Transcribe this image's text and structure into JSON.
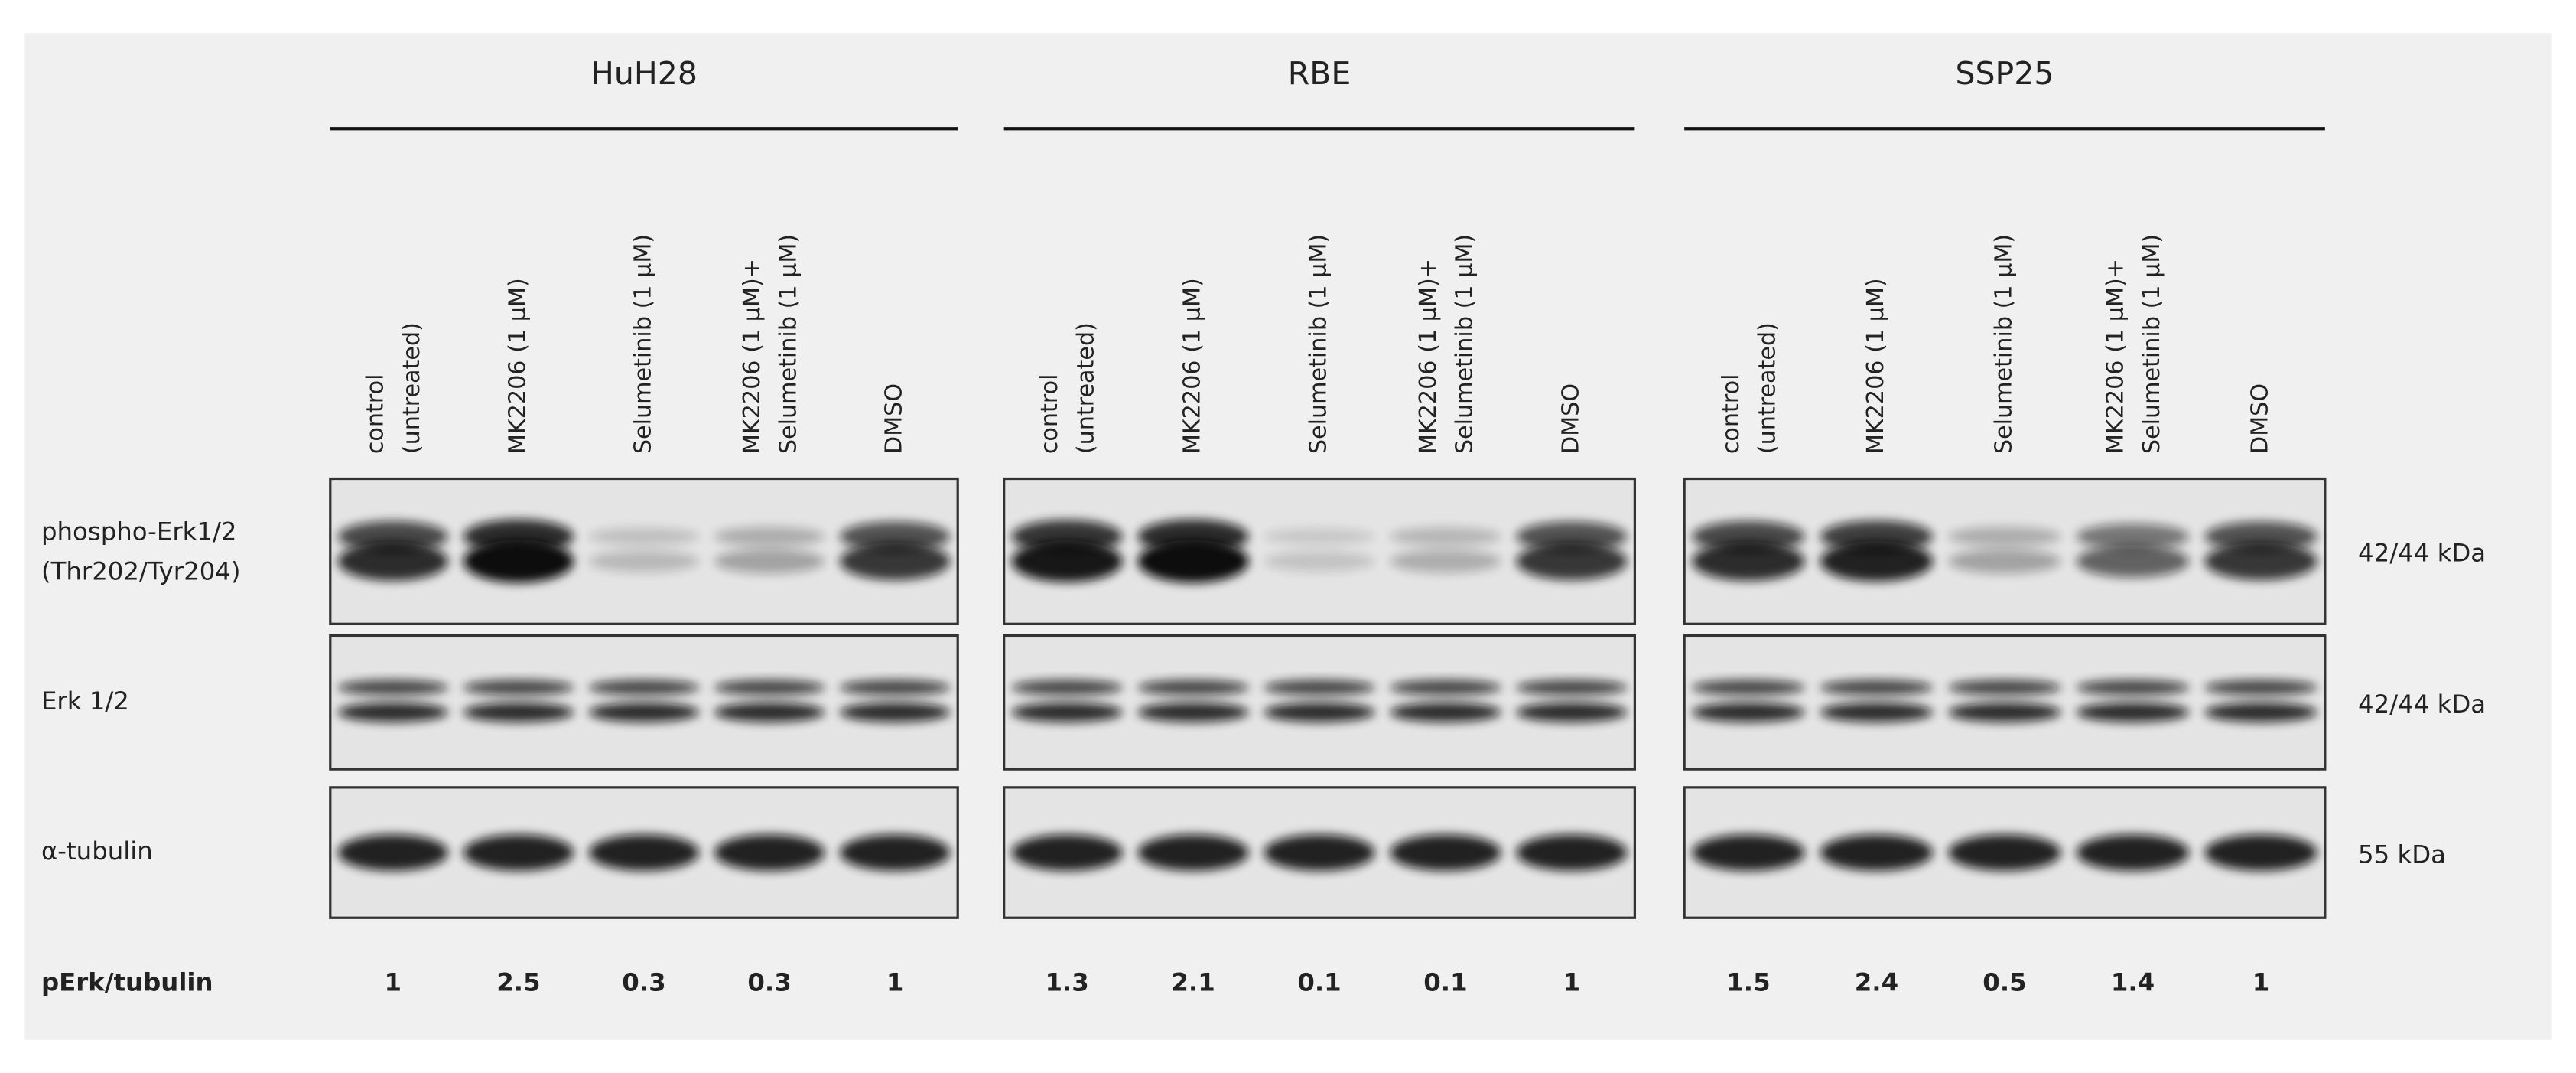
{
  "row_labels": [
    [
      "phospho-Erk1/2",
      "(Thr202/Tyr204)"
    ],
    [
      "Erk 1/2"
    ],
    [
      "α-tubulin"
    ]
  ],
  "sizes": [
    "42/44 kDa",
    "42/44 kDa",
    "55 kDa"
  ],
  "ratio_label": "pErk/tubulin",
  "panels": [
    {
      "cell_line": "HuH28",
      "lanes": [
        [
          "control",
          "(untreated)"
        ],
        [
          "MK2206 (1 µM)"
        ],
        [
          "Selumetinib (1 µM)"
        ],
        [
          "MK2206 (1 µM)+",
          "Selumetinib (1 µM)"
        ],
        [
          "DMSO"
        ]
      ],
      "ratios": [
        "1",
        "2.5",
        "0.3",
        "0.3",
        "1"
      ]
    },
    {
      "cell_line": "RBE",
      "lanes": [
        [
          "control",
          "(untreated)"
        ],
        [
          "MK2206 (1 µM)"
        ],
        [
          "Selumetinib (1 µM)"
        ],
        [
          "MK2206 (1 µM)+",
          "Selumetinib (1 µM)"
        ],
        [
          "DMSO"
        ]
      ],
      "ratios": [
        "1.3",
        "2.1",
        "0.1",
        "0.1",
        "1"
      ]
    },
    {
      "cell_line": "SSP25",
      "lanes": [
        [
          "control",
          "(untreated)"
        ],
        [
          "MK2206 (1 µM)"
        ],
        [
          "Selumetinib (1 µM)"
        ],
        [
          "MK2206 (1 µM)+",
          "Selumetinib (1 µM)"
        ],
        [
          "DMSO"
        ]
      ],
      "ratios": [
        "1.5",
        "2.4",
        "0.5",
        "1.4",
        "1"
      ]
    }
  ]
}
